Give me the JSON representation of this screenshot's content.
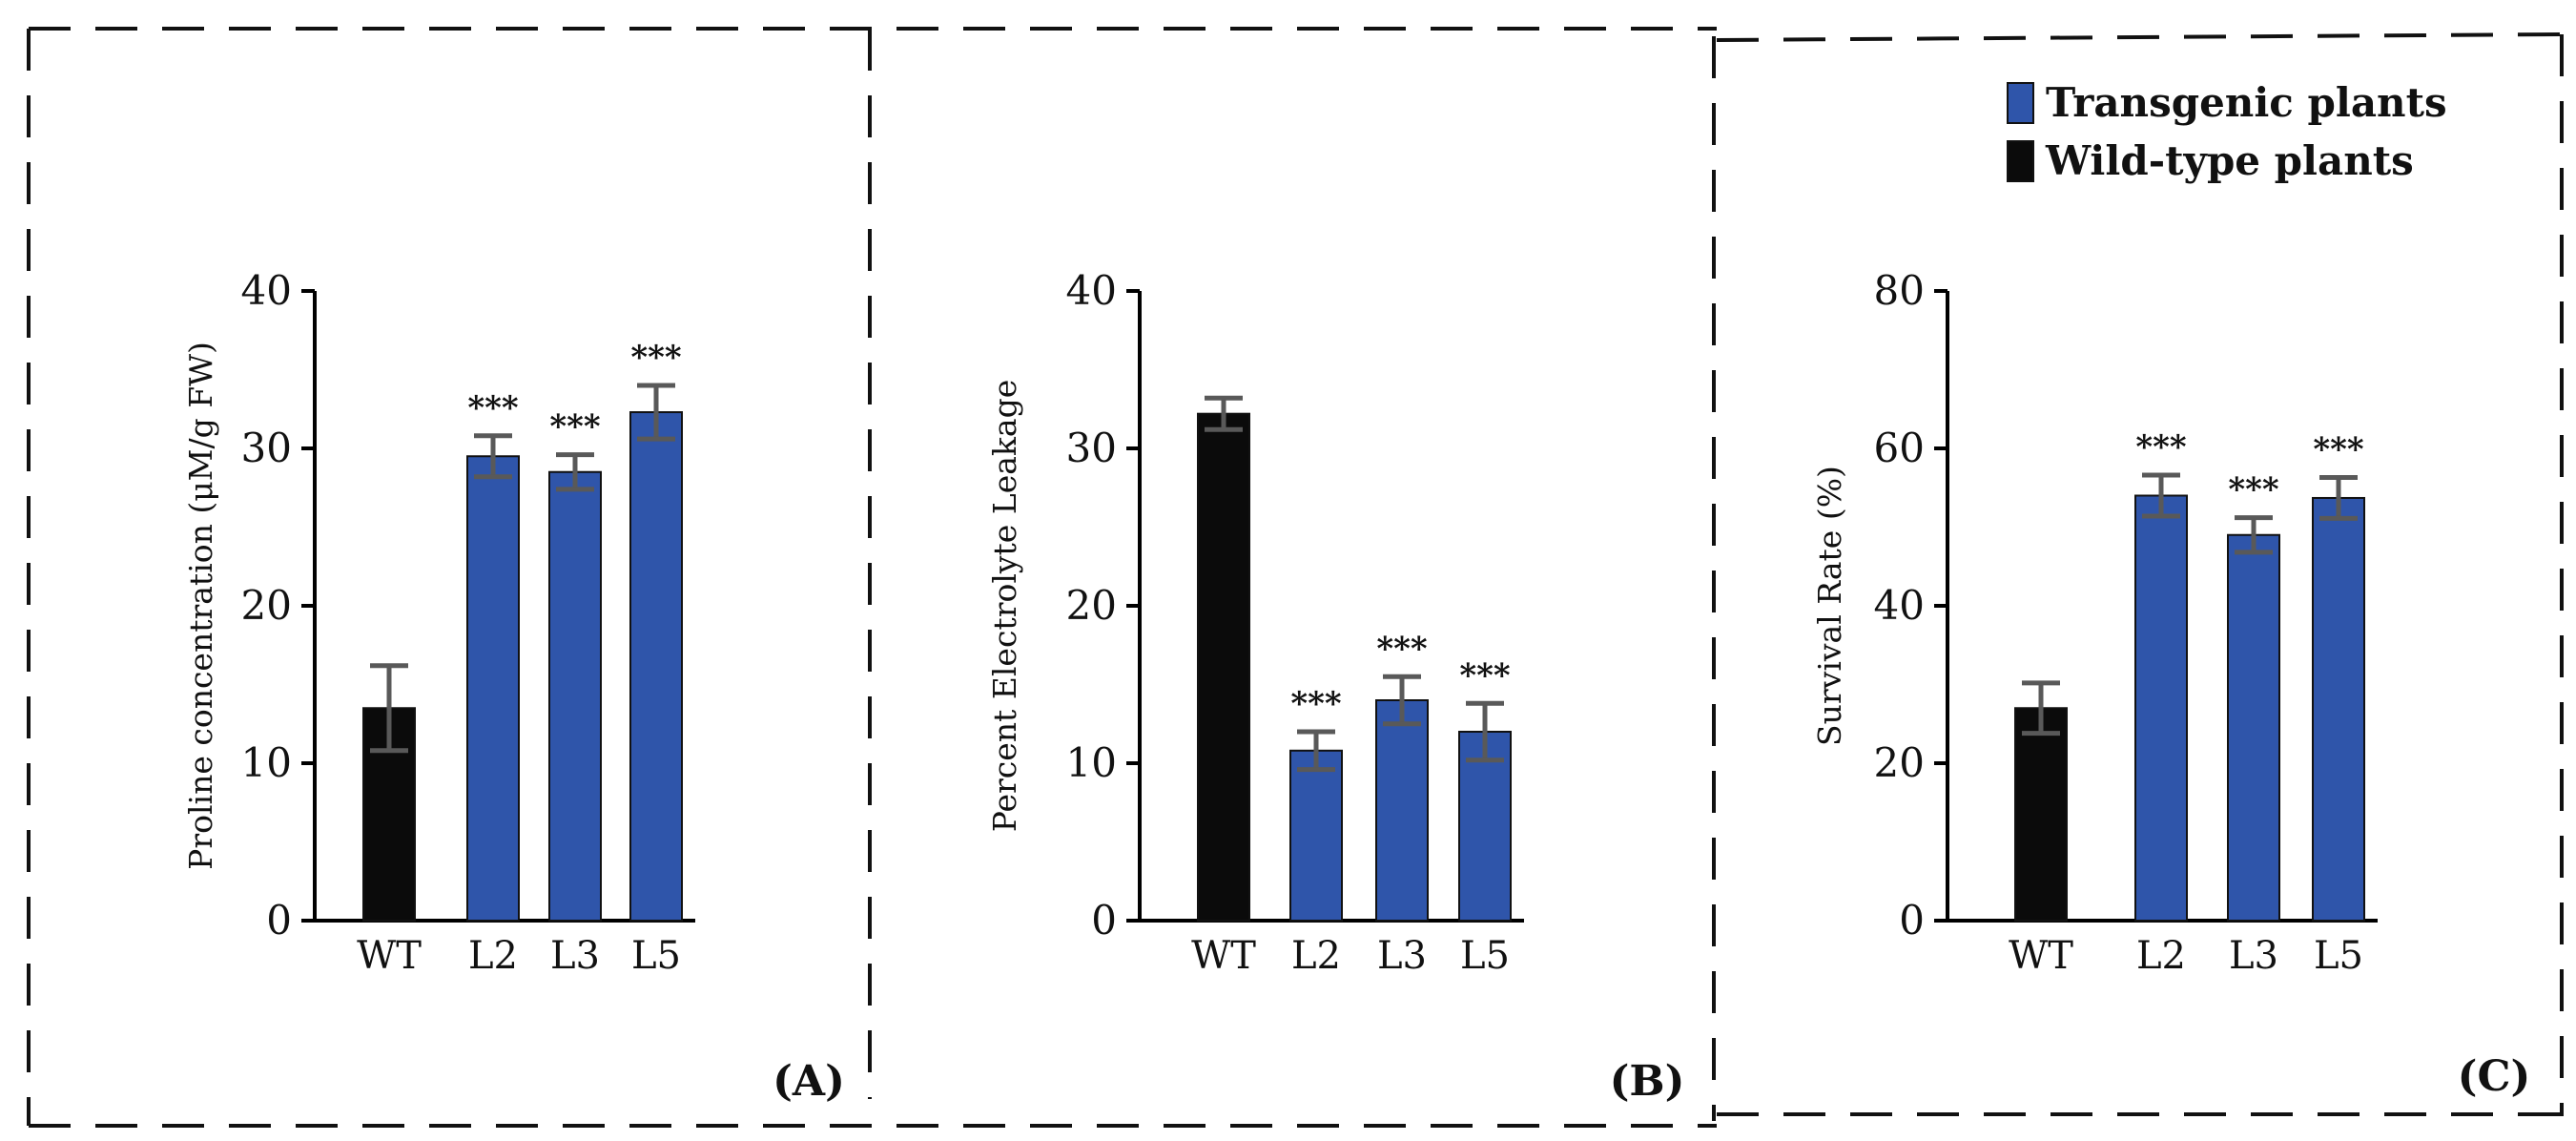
{
  "colors": {
    "transgenic": "#2f55aa",
    "wild_type": "#0b0b0b",
    "error_bar": "#595959",
    "axis": "#000000"
  },
  "legend": {
    "items": [
      {
        "label": "Transgenic plants",
        "color": "#2f55aa"
      },
      {
        "label": "Wild-type plants",
        "color": "#0b0b0b"
      }
    ],
    "placement": "top-right"
  },
  "chart_data": [
    {
      "type": "bar",
      "panel_label": "(A)",
      "ylabel": "Proline concentration (μM/g FW)",
      "ylim": [
        0,
        40
      ],
      "yticks": [
        0,
        10,
        20,
        30,
        40
      ],
      "categories": [
        "WT",
        "L2",
        "L3",
        "L5"
      ],
      "values": [
        13.5,
        29.5,
        28.5,
        32.3
      ],
      "errors": [
        2.7,
        1.3,
        1.1,
        1.7
      ],
      "significance": [
        "",
        "***",
        "***",
        "***"
      ],
      "grid": false
    },
    {
      "type": "bar",
      "panel_label": "(B)",
      "ylabel": "Percent Electrolyte Leakage",
      "ylim": [
        0,
        40
      ],
      "yticks": [
        0,
        10,
        20,
        30,
        40
      ],
      "categories": [
        "WT",
        "L2",
        "L3",
        "L5"
      ],
      "values": [
        32.2,
        10.8,
        14.0,
        12.0
      ],
      "errors": [
        1.0,
        1.2,
        1.5,
        1.8
      ],
      "significance": [
        "",
        "***",
        "***",
        "***"
      ],
      "grid": false
    },
    {
      "type": "bar",
      "panel_label": "(C)",
      "ylabel": "Survival Rate (%)",
      "ylim": [
        0,
        80
      ],
      "yticks": [
        0,
        20,
        40,
        60,
        80
      ],
      "categories": [
        "WT",
        "L2",
        "L3",
        "L5"
      ],
      "values": [
        27.0,
        54.0,
        49.0,
        53.7
      ],
      "errors": [
        3.2,
        2.6,
        2.2,
        2.6
      ],
      "significance": [
        "",
        "***",
        "***",
        "***"
      ],
      "grid": false
    }
  ]
}
